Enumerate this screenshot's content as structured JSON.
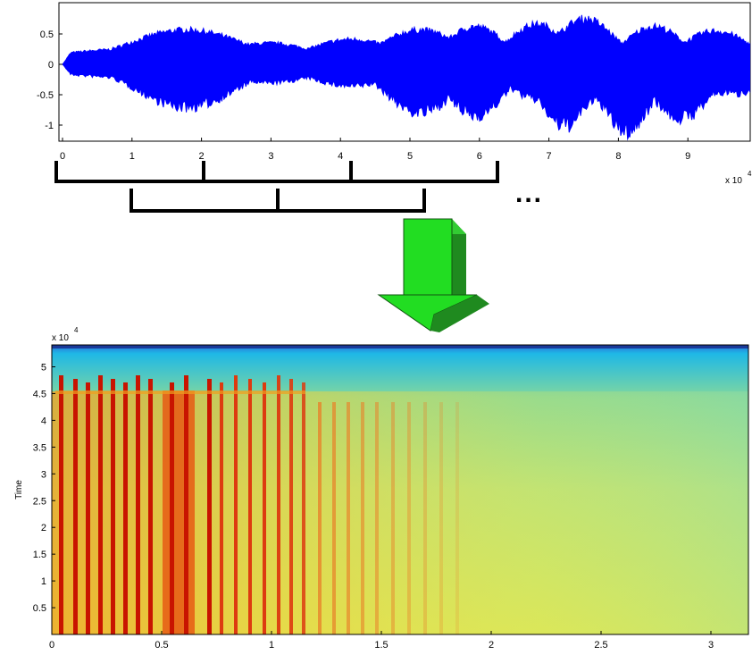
{
  "waveform": {
    "x_ticks": [
      "0",
      "1",
      "2",
      "3",
      "4",
      "5",
      "6",
      "7",
      "8",
      "9"
    ],
    "y_ticks": [
      "0.5",
      "0",
      "-0.5",
      "-1"
    ],
    "x_multiplier": "x 10",
    "x_exponent": "4",
    "color": "#0000ff"
  },
  "windows": {
    "ellipsis": "..."
  },
  "arrow": {
    "color": "#22dd22"
  },
  "spectrogram": {
    "y_multiplier": "x 10",
    "y_exponent": "4",
    "y_label": "Time",
    "y_ticks": [
      "5",
      "4.5",
      "4",
      "3.5",
      "3",
      "2.5",
      "2",
      "1.5",
      "1",
      "0.5"
    ],
    "x_ticks": [
      "0",
      "0.5",
      "1",
      "1.5",
      "2",
      "2.5",
      "3"
    ],
    "colormap": [
      "#000090",
      "#0060ff",
      "#20c0e0",
      "#80e080",
      "#f0f040",
      "#ffb020",
      "#f04010",
      "#c00000"
    ]
  }
}
